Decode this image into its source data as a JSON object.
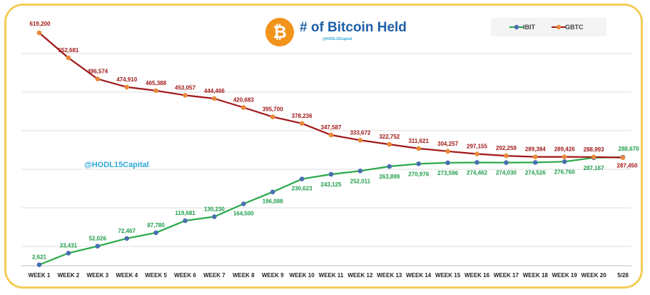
{
  "chart_data": {
    "type": "line",
    "title": "# of Bitcoin Held",
    "subtitle": "@HODL15Capital",
    "watermark": "@HODL15Capital",
    "categories": [
      "WEEK 1",
      "WEEK 2",
      "WEEK 3",
      "WEEK 4",
      "WEEK 5",
      "WEEK 6",
      "WEEK 7",
      "WEEK 8",
      "WEEK 9",
      "WEEK 10",
      "WEEK 11",
      "WEEK 12",
      "WEEK 13",
      "WEEK 14",
      "WEEK 15",
      "WEEK 16",
      "WEEK 17",
      "WEEK 18",
      "WEEK 19",
      "WEEK 20",
      "5/28"
    ],
    "series": [
      {
        "name": "IBIT",
        "line_color": "#2aa84a",
        "marker_color": "#4a6fb0",
        "values": [
          2621,
          33431,
          52026,
          72467,
          87780,
          119681,
          130230,
          164500,
          196088,
          230623,
          243125,
          252011,
          263899,
          270976,
          273596,
          274462,
          274030,
          274526,
          276760,
          287167,
          288670
        ],
        "labels": [
          "2,621",
          "33,431",
          "52,026",
          "72,467",
          "87,780",
          "119,681",
          "130,230",
          "164,500",
          "196,088",
          "230,623",
          "243,125",
          "252,011",
          "263,899",
          "270,976",
          "273,596",
          "274,462",
          "274,030",
          "274,526",
          "276,760",
          "287,167",
          "288,670"
        ]
      },
      {
        "name": "GBTC",
        "line_color": "#a01818",
        "marker_color": "#e8893a",
        "values": [
          619200,
          552681,
          496574,
          474910,
          465388,
          453057,
          444466,
          420683,
          395700,
          378236,
          347587,
          333672,
          322752,
          311621,
          304257,
          297155,
          292259,
          289384,
          289426,
          288993,
          287450
        ],
        "labels": [
          "619,200",
          "552,681",
          "496,574",
          "474,910",
          "465,388",
          "453,057",
          "444,466",
          "420,683",
          "395,700",
          "378,236",
          "347,587",
          "333,672",
          "322,752",
          "311,621",
          "304,257",
          "297,155",
          "292,259",
          "289,384",
          "289,426",
          "288,993",
          "287,450"
        ]
      }
    ],
    "ylim": [
      0,
      640000
    ],
    "grid": true,
    "legend_position": "top-right",
    "icon": "bitcoin-logo-icon",
    "colors": {
      "frame": "#f3cd58",
      "title": "#1f5fa8",
      "bitcoin": "#f2931c"
    }
  }
}
